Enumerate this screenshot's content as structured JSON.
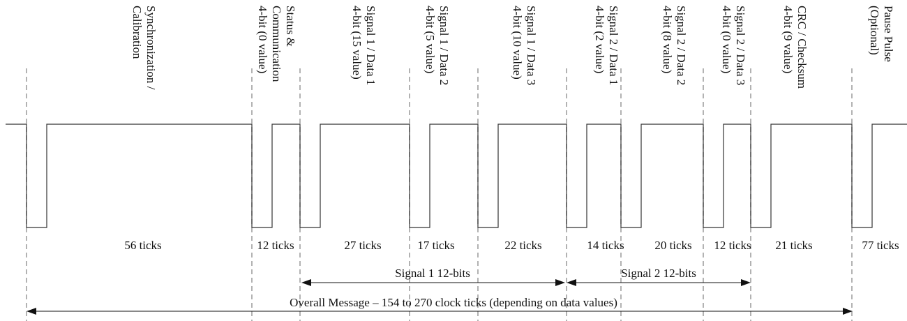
{
  "diagram": {
    "type": "SENT protocol timing diagram",
    "segments": [
      {
        "lines": [
          "Synchronization /",
          "Calibration"
        ],
        "ticks": "56 ticks"
      },
      {
        "lines": [
          "Status &",
          "Communication",
          "4-bit (0 value)"
        ],
        "ticks": "12 ticks"
      },
      {
        "lines": [
          "Signal 1 / Data 1",
          "4-bit (15 value)"
        ],
        "ticks": "27 ticks"
      },
      {
        "lines": [
          "Signal 1 / Data 2",
          "4-bit (5 value)"
        ],
        "ticks": "17 ticks"
      },
      {
        "lines": [
          "Signal 1 / Data 3",
          "4-bit (10 value)"
        ],
        "ticks": "22 ticks"
      },
      {
        "lines": [
          "Signal 2 / Data 1",
          "4-bit (2 value)"
        ],
        "ticks": "14 ticks"
      },
      {
        "lines": [
          "Signal 2 / Data 2",
          "4-bit (8 value)"
        ],
        "ticks": "20 ticks"
      },
      {
        "lines": [
          "Signal 2 / Data 3",
          "4-bit (0 value)"
        ],
        "ticks": "12 ticks"
      },
      {
        "lines": [
          "CRC / Checksum",
          "4-bit (9 value)"
        ],
        "ticks": "21 ticks"
      },
      {
        "lines": [
          "Pause Pulse",
          "(Optional)"
        ],
        "ticks": "77 ticks"
      }
    ],
    "spans": [
      {
        "label": "Signal 1 12-bits"
      },
      {
        "label": "Signal 2 12-bits"
      },
      {
        "label": "Overall Message – 154 to 270 clock ticks (depending on data values)"
      }
    ],
    "colors": {
      "waveform": "#333333",
      "boundary": "#a0a0a0",
      "text": "#111111"
    }
  }
}
